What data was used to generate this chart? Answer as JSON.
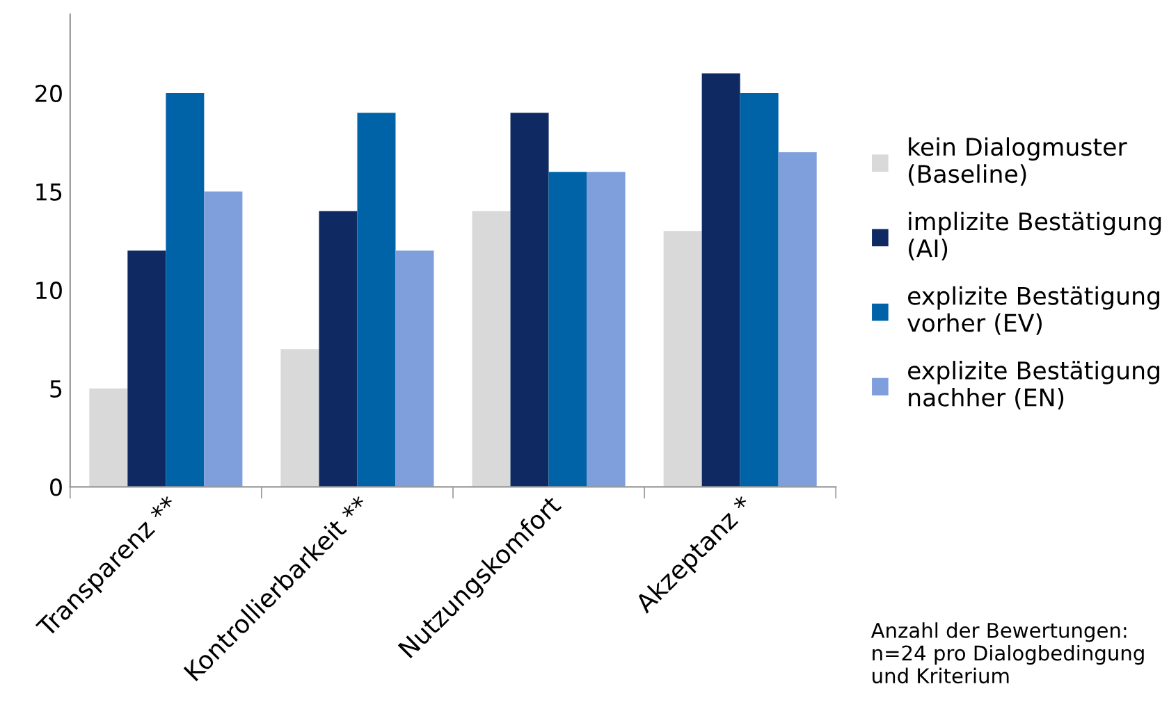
{
  "chart_data": {
    "type": "bar",
    "categories": [
      "Transparenz **",
      "Kontrollierbarkeit **",
      "Nutzungskomfort",
      "Akzeptanz *"
    ],
    "series": [
      {
        "name": "kein Dialogmuster (Baseline)",
        "color": "#d9d9d9",
        "values": [
          5,
          7,
          14,
          13
        ]
      },
      {
        "name": "implizite Bestätigung (AI)",
        "color": "#0f2a63",
        "values": [
          12,
          14,
          19,
          21
        ]
      },
      {
        "name": "explizite Bestätigung vorher (EV)",
        "color": "#0063a8",
        "values": [
          20,
          19,
          16,
          20
        ]
      },
      {
        "name": "explizite Bestätigung nachher (EN)",
        "color": "#7f9fdc",
        "values": [
          15,
          12,
          16,
          17
        ]
      }
    ],
    "ylim": [
      0,
      24
    ],
    "yticks": [
      0,
      5,
      10,
      15,
      20
    ],
    "grid": false,
    "legend": "right",
    "annotations": [
      "Anzahl der Bewertungen: n=24 pro Dialogbedingung und Kriterium"
    ]
  }
}
